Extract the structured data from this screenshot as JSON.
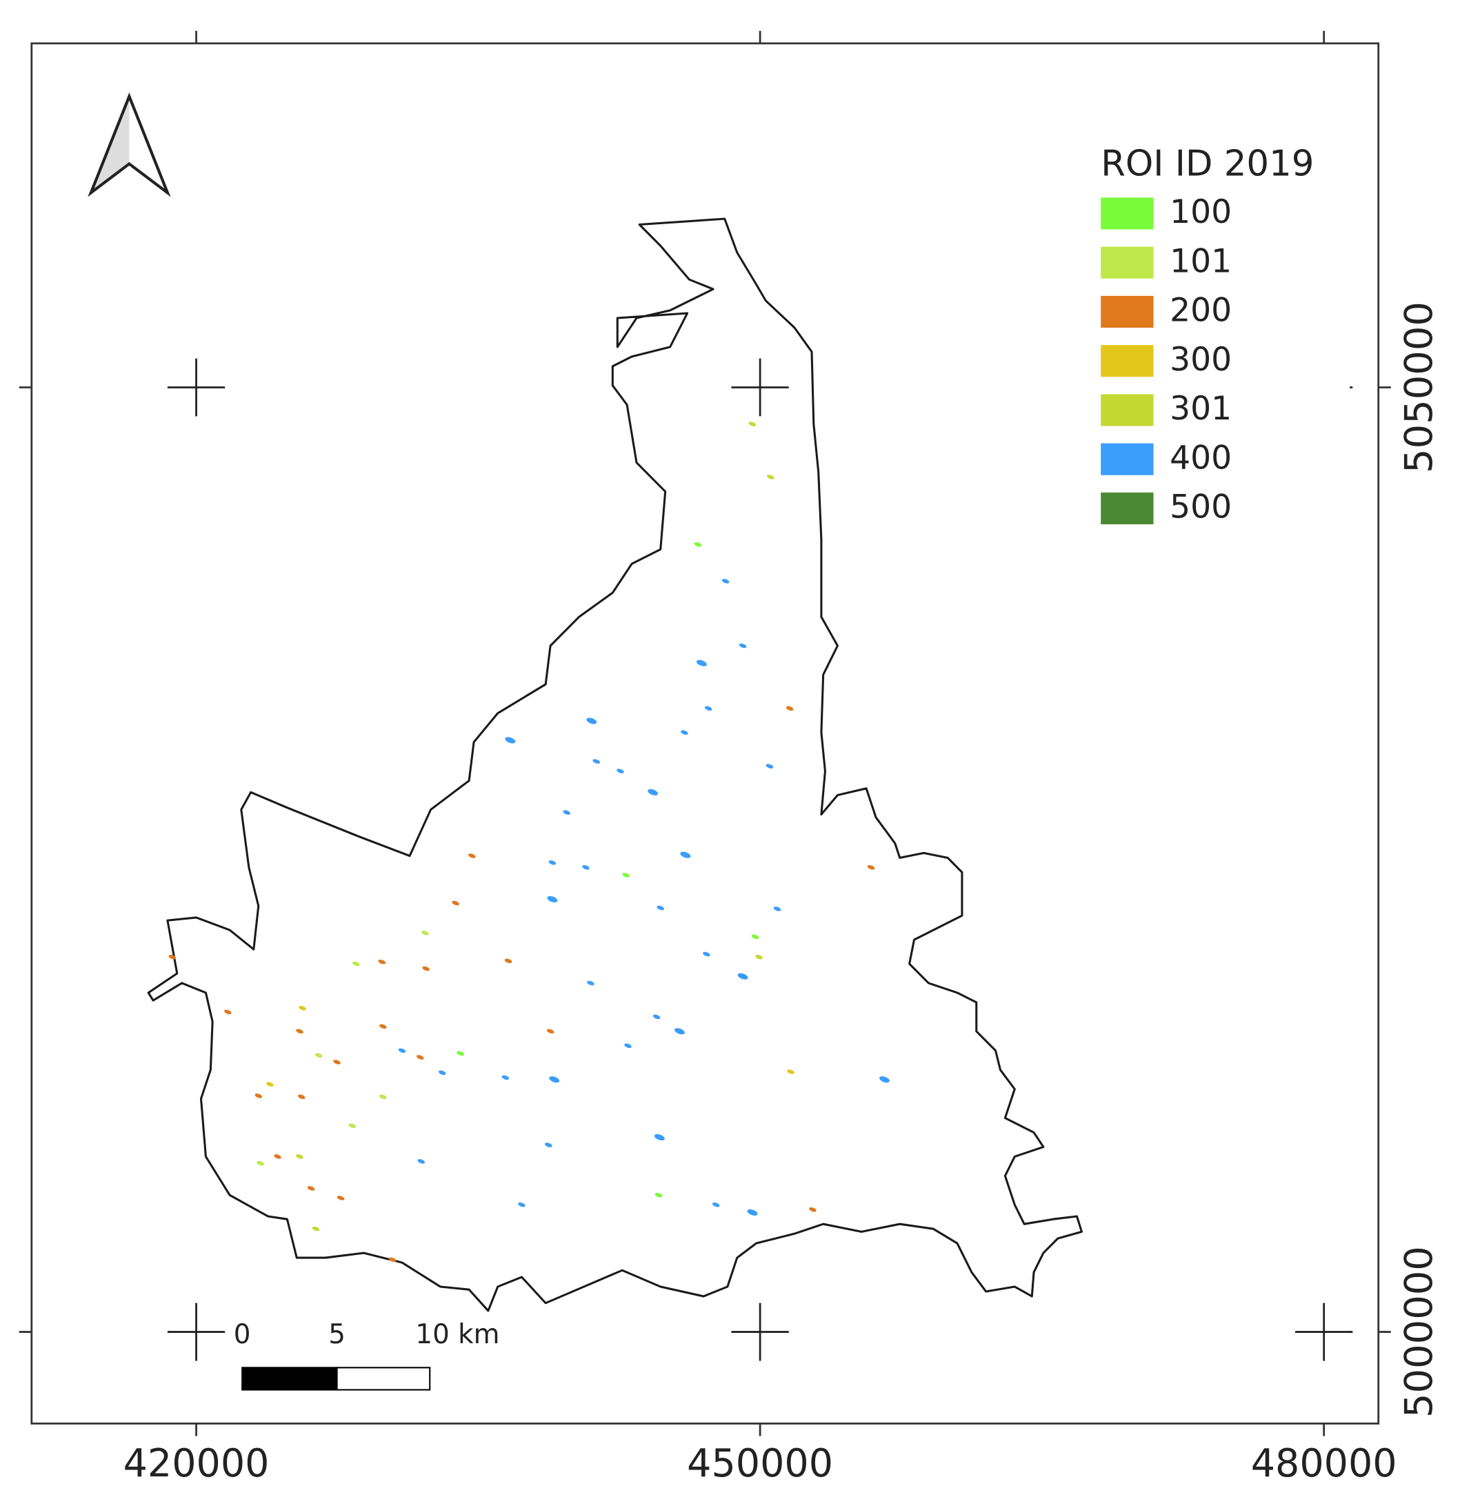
{
  "map": {
    "legend": {
      "title": "ROI ID 2019",
      "items": [
        {
          "label": "100",
          "color": "#7afb3a"
        },
        {
          "label": "101",
          "color": "#bfe84a"
        },
        {
          "label": "200",
          "color": "#e0781c"
        },
        {
          "label": "300",
          "color": "#e3c71a"
        },
        {
          "label": "301",
          "color": "#c3d932"
        },
        {
          "label": "400",
          "color": "#3a9dfb"
        },
        {
          "label": "500",
          "color": "#4b8a34"
        }
      ]
    },
    "x_axis": {
      "xlim": [
        411240,
        482900
      ],
      "xticks": [
        420000,
        450000,
        480000
      ]
    },
    "y_axis": {
      "ylim": [
        4995150,
        5068210
      ],
      "yticks": [
        5000000,
        5050000
      ]
    },
    "scale_bar": {
      "labels": [
        "0",
        "5",
        "10 km"
      ]
    }
  }
}
